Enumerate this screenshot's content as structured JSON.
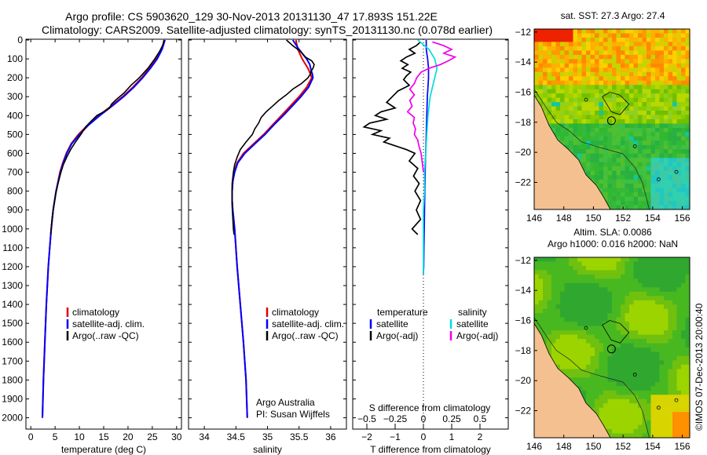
{
  "header": {
    "title_line1": "Argo profile: CS 5903620_129 30-Nov-2013 20131130_47 17.893S 151.22E",
    "title_line2": "Climatology: CARS2009. Satellite-adjusted climatology: synTS_20131130.nc (0.078d earlier)"
  },
  "colors": {
    "climatology": "#e00000",
    "satellite": "#0000ff",
    "argo": "#000000",
    "sat_salinity": "#00dddd",
    "argo_salinity_adj": "#ee00ee"
  },
  "depth_axis": {
    "ticks": [
      0,
      100,
      200,
      300,
      400,
      500,
      600,
      700,
      800,
      900,
      1000,
      1100,
      1200,
      1300,
      1400,
      1500,
      1600,
      1700,
      1800,
      1900,
      2000
    ],
    "lim": [
      0,
      2060
    ]
  },
  "chart_data": [
    {
      "type": "line",
      "id": "temperature",
      "xlabel": "temperature (deg C)",
      "ylabel": "depth",
      "xlim": [
        -1,
        31
      ],
      "xticks": [
        0,
        5,
        10,
        15,
        20,
        25,
        30
      ],
      "legend": [
        "climatology",
        "satellite-adj. clim.",
        "Argo(..raw -QC)"
      ],
      "series": [
        {
          "name": "climatology",
          "depth": [
            0,
            50,
            100,
            150,
            200,
            250,
            300,
            350,
            400,
            450,
            500,
            550,
            600,
            650,
            700,
            800,
            900,
            1000,
            1100,
            1200,
            1400,
            1600,
            1800,
            2000
          ],
          "values": [
            27.5,
            26.9,
            25.8,
            24.4,
            22.8,
            21.0,
            18.9,
            16.5,
            14.0,
            11.7,
            9.8,
            8.3,
            7.3,
            6.6,
            6.0,
            5.2,
            4.6,
            4.2,
            3.9,
            3.6,
            3.2,
            2.9,
            2.6,
            2.4
          ]
        },
        {
          "name": "satellite-adj. clim.",
          "depth": [
            0,
            50,
            100,
            150,
            200,
            250,
            300,
            350,
            400,
            450,
            500,
            550,
            600,
            650,
            700,
            800,
            900,
            1000,
            1100,
            1200,
            1400,
            1600,
            1800,
            2000
          ],
          "values": [
            27.6,
            27.0,
            26.0,
            24.6,
            23.0,
            21.2,
            19.1,
            16.7,
            14.2,
            11.9,
            10.0,
            8.4,
            7.4,
            6.7,
            6.1,
            5.2,
            4.6,
            4.2,
            3.9,
            3.6,
            3.2,
            2.9,
            2.6,
            2.4
          ]
        },
        {
          "name": "Argo(..raw -QC)",
          "depth": [
            0,
            25,
            60,
            100,
            150,
            200,
            240,
            280,
            320,
            340,
            360,
            380,
            400,
            430,
            460,
            500,
            540,
            580,
            620,
            660,
            700,
            760,
            820,
            880,
            940,
            1000,
            1030
          ],
          "values": [
            27.4,
            27.2,
            26.5,
            25.5,
            24.1,
            22.3,
            20.6,
            19.2,
            17.4,
            16.6,
            16.2,
            15.0,
            13.6,
            12.4,
            11.3,
            10.3,
            9.2,
            8.2,
            7.4,
            6.7,
            6.2,
            5.6,
            5.1,
            4.7,
            4.4,
            4.2,
            4.1
          ]
        }
      ]
    },
    {
      "type": "line",
      "id": "salinity",
      "xlabel": "salinity",
      "ylabel": "depth",
      "xlim": [
        33.75,
        36.25
      ],
      "xticks": [
        34,
        34.5,
        35,
        35.5,
        36
      ],
      "legend": [
        "climatology",
        "satellite-adj. clim.",
        "Argo(..raw -QC)"
      ],
      "annotation_line1": "Argo Australia",
      "annotation_line2": "PI: Susan Wijffels",
      "series": [
        {
          "name": "climatology",
          "depth": [
            0,
            50,
            100,
            150,
            180,
            200,
            250,
            300,
            350,
            400,
            450,
            500,
            550,
            600,
            650,
            700,
            750,
            800,
            850,
            900,
            1000,
            1200,
            1400,
            1600,
            1800,
            2000
          ],
          "values": [
            35.45,
            35.48,
            35.55,
            35.64,
            35.68,
            35.7,
            35.62,
            35.5,
            35.36,
            35.22,
            35.08,
            34.94,
            34.78,
            34.62,
            34.52,
            34.47,
            34.45,
            34.44,
            34.44,
            34.45,
            34.48,
            34.52,
            34.57,
            34.62,
            34.66,
            34.68
          ]
        },
        {
          "name": "satellite-adj. clim.",
          "depth": [
            0,
            50,
            100,
            130,
            160,
            180,
            200,
            250,
            300,
            350,
            400,
            450,
            500,
            550,
            600,
            650,
            700,
            750,
            800,
            850,
            900,
            1000,
            1200,
            1400,
            1600,
            1800,
            2000
          ],
          "values": [
            35.4,
            35.5,
            35.62,
            35.67,
            35.69,
            35.71,
            35.72,
            35.65,
            35.53,
            35.39,
            35.25,
            35.1,
            34.96,
            34.8,
            34.64,
            34.53,
            34.48,
            34.45,
            34.44,
            34.44,
            34.45,
            34.48,
            34.52,
            34.57,
            34.62,
            34.66,
            34.68
          ]
        },
        {
          "name": "Argo(..raw -QC)",
          "depth": [
            0,
            30,
            60,
            90,
            110,
            130,
            150,
            165,
            180,
            200,
            230,
            260,
            290,
            320,
            350,
            380,
            410,
            440,
            470,
            500,
            540,
            580,
            620,
            660,
            700,
            760,
            820,
            880,
            940,
            1000,
            1030
          ],
          "values": [
            35.3,
            35.4,
            35.52,
            35.6,
            35.7,
            35.74,
            35.72,
            35.69,
            35.68,
            35.64,
            35.54,
            35.4,
            35.3,
            35.18,
            35.08,
            34.98,
            34.9,
            34.86,
            34.8,
            34.76,
            34.66,
            34.57,
            34.52,
            34.48,
            34.46,
            34.44,
            34.44,
            34.44,
            34.45,
            34.46,
            34.47
          ]
        }
      ]
    },
    {
      "type": "line",
      "id": "differences",
      "xlabel": "T difference from climatology",
      "xlabel_top": "S difference from climatology",
      "ylabel": "depth",
      "xlim": [
        -2.5,
        3
      ],
      "xticks": [
        -2,
        -1,
        0,
        1,
        2
      ],
      "top_ticks": [
        -0.5,
        -0.25,
        0,
        0.25,
        0.5
      ],
      "top_tick_labels": [
        "−0.5",
        "−0.25",
        "0",
        "0.25",
        "0.5"
      ],
      "legend_temperature_title": "temperature",
      "legend_salinity_title": "salinity",
      "legend": [
        "satellite",
        "Argo(-adj)",
        "satellite",
        "Argo(-adj)"
      ],
      "series": [
        {
          "name": "T satellite",
          "depth": [
            0,
            50,
            100,
            150,
            200,
            250,
            300,
            400,
            500,
            600,
            700,
            800,
            900,
            1000,
            1100,
            1200,
            1240
          ],
          "values": [
            0.1,
            0.1,
            0.15,
            0.18,
            0.18,
            0.16,
            0.14,
            0.12,
            0.1,
            0.08,
            0.06,
            0.05,
            0.04,
            0.03,
            0.02,
            0.01,
            0.0
          ]
        },
        {
          "name": "T Argo(-adj)",
          "depth": [
            10,
            30,
            50,
            70,
            90,
            110,
            130,
            150,
            170,
            190,
            210,
            240,
            270,
            300,
            330,
            360,
            380,
            400,
            420,
            440,
            460,
            480,
            500,
            520,
            540,
            560,
            580,
            600,
            640,
            680,
            720,
            760,
            800,
            850,
            900,
            950,
            1000,
            1030
          ],
          "values": [
            -0.1,
            -0.25,
            -0.5,
            -0.3,
            -0.6,
            -0.8,
            -0.55,
            -0.75,
            -0.45,
            -0.6,
            -0.7,
            -0.5,
            -0.9,
            -1.1,
            -1.3,
            -1.0,
            -1.5,
            -1.7,
            -1.3,
            -1.9,
            -2.1,
            -1.5,
            -1.8,
            -1.2,
            -1.4,
            -1.0,
            -0.6,
            -0.3,
            -0.5,
            -0.2,
            -0.35,
            -0.15,
            -0.3,
            -0.1,
            -0.25,
            -0.1,
            -0.4,
            -0.2
          ]
        },
        {
          "name": "S satellite",
          "depth": [
            0,
            50,
            100,
            150,
            200,
            250,
            300,
            400,
            500,
            600,
            700,
            800,
            900,
            1000,
            1100,
            1200,
            1240
          ],
          "values": [
            -0.05,
            0.05,
            0.1,
            0.12,
            0.1,
            0.08,
            0.06,
            0.04,
            0.03,
            0.02,
            0.01,
            0.01,
            0.0,
            0.0,
            0.0,
            0.0,
            0.0
          ]
        },
        {
          "name": "S Argo(-adj)",
          "depth": [
            10,
            30,
            50,
            70,
            90,
            110,
            130,
            150,
            170,
            200,
            230,
            260,
            290,
            320,
            350,
            380,
            410,
            440,
            470,
            500,
            530,
            560,
            600,
            650,
            700
          ],
          "values": [
            0.08,
            0.18,
            0.25,
            0.18,
            0.28,
            0.22,
            0.15,
            0.05,
            -0.02,
            -0.06,
            -0.08,
            -0.12,
            -0.08,
            -0.12,
            -0.1,
            -0.14,
            -0.08,
            -0.09,
            -0.07,
            -0.08,
            -0.05,
            -0.04,
            -0.02,
            -0.01,
            0.0
          ]
        }
      ]
    },
    {
      "type": "heatmap",
      "id": "sst_map",
      "title": "sat. SST: 27.3 Argo: 27.4",
      "xlim": [
        146,
        156.5
      ],
      "ylim": [
        -23.8,
        -11.8
      ],
      "xticks": [
        146,
        148,
        150,
        152,
        154,
        156
      ],
      "yticks": [
        -12,
        -14,
        -16,
        -18,
        -20,
        -22
      ]
    },
    {
      "type": "heatmap",
      "id": "sla_map",
      "title_line1": "Altim. SLA: 0.0086",
      "title_line2": "Argo h1000: 0.016 h2000: NaN",
      "xlim": [
        146,
        156.5
      ],
      "ylim": [
        -23.8,
        -11.8
      ],
      "xticks": [
        146,
        148,
        150,
        152,
        154,
        156
      ],
      "yticks": [
        -12,
        -14,
        -16,
        -18,
        -20,
        -22
      ],
      "side_label": "©IMOS 07-Dec-2013 20:00:40"
    }
  ]
}
